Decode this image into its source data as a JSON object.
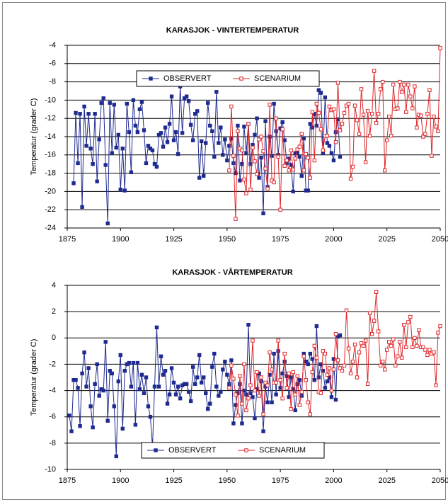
{
  "chart_data": [
    {
      "type": "line",
      "title": "KARASJOK - VINTERTEMPERATUR",
      "ylabel": "Temperatur (grader C)",
      "grid": true,
      "legend": "upper center",
      "xlim": [
        1875,
        2050
      ],
      "xticks": [
        1875,
        1900,
        1925,
        1950,
        1975,
        2000,
        2025,
        2050
      ],
      "ylim": [
        -24,
        -4
      ],
      "yticks": [
        -24,
        -22,
        -20,
        -18,
        -16,
        -14,
        -12,
        -10,
        -8,
        -6,
        -4
      ],
      "series": [
        {
          "name": "OBSERVERT",
          "color": "#1f2b8f",
          "marker": "filled",
          "x": [
            1878,
            1879,
            1880,
            1881,
            1882,
            1883,
            1884,
            1885,
            1886,
            1887,
            1888,
            1889,
            1890,
            1891,
            1892,
            1893,
            1894,
            1895,
            1896,
            1897,
            1898,
            1899,
            1900,
            1901,
            1902,
            1903,
            1904,
            1905,
            1906,
            1907,
            1908,
            1909,
            1910,
            1911,
            1912,
            1913,
            1914,
            1915,
            1916,
            1917,
            1918,
            1919,
            1920,
            1921,
            1922,
            1923,
            1924,
            1925,
            1926,
            1927,
            1928,
            1929,
            1930,
            1931,
            1932,
            1933,
            1934,
            1935,
            1936,
            1937,
            1938,
            1939,
            1940,
            1941,
            1942,
            1943,
            1944,
            1945,
            1946,
            1947,
            1948,
            1949,
            1950,
            1951,
            1952,
            1953,
            1954,
            1955,
            1956,
            1957,
            1958,
            1959,
            1960,
            1961,
            1962,
            1963,
            1964,
            1965,
            1966,
            1967,
            1968,
            1969,
            1970,
            1971,
            1972,
            1973,
            1974,
            1975,
            1976,
            1977,
            1978,
            1979,
            1980,
            1981,
            1982,
            1983,
            1984,
            1985,
            1986,
            1987,
            1988,
            1989,
            1990,
            1991,
            1992,
            1993,
            1994,
            1995,
            1996,
            1997,
            1998,
            1999,
            2000,
            2001,
            2002,
            2003
          ],
          "values": [
            -19.1,
            -11.4,
            -16.9,
            -11.5,
            -21.7,
            -10.7,
            -15.0,
            -11.5,
            -15.3,
            -17.0,
            -11.5,
            -18.9,
            -14.3,
            -10.3,
            -9.8,
            -17.1,
            -23.5,
            -10.3,
            -15.8,
            -10.5,
            -15.2,
            -13.8,
            -19.8,
            -15.3,
            -19.9,
            -10.4,
            -13.5,
            -17.9,
            -10.0,
            -12.8,
            -13.5,
            -11.0,
            -10.2,
            -13.3,
            -16.9,
            -15.0,
            -15.3,
            -15.5,
            -17.0,
            -17.3,
            -13.8,
            -13.6,
            -15.1,
            -13.0,
            -14.6,
            -12.6,
            -9.6,
            -14.4,
            -13.5,
            -15.9,
            -8.5,
            -13.6,
            -9.8,
            -9.6,
            -10.1,
            -12.7,
            -14.4,
            -11.5,
            -11.2,
            -18.5,
            -14.5,
            -18.3,
            -14.7,
            -10.3,
            -12.8,
            -13.4,
            -16.2,
            -9.1,
            -14.7,
            -13.0,
            -16.0,
            -14.3,
            -16.6,
            -15.0,
            -14.2,
            -16.9,
            -18.0,
            -12.8,
            -18.8,
            -17.0,
            -12.9,
            -15.8,
            -12.6,
            -17.0,
            -14.9,
            -13.8,
            -12.0,
            -18.5,
            -16.3,
            -22.4,
            -12.3,
            -19.5,
            -14.0,
            -16.1,
            -10.4,
            -13.4,
            -16.0,
            -13.1,
            -12.4,
            -14.4,
            -16.9,
            -16.4,
            -17.1,
            -20.0,
            -15.8,
            -15.8,
            -16.2,
            -18.3,
            -14.2,
            -19.9,
            -19.9,
            -12.6,
            -13.0,
            -11.5,
            -12.8,
            -8.9,
            -9.2,
            -15.8,
            -9.7,
            -14.7,
            -15.0,
            -15.8,
            -16.6,
            -13.5,
            -12.1,
            -16.2
          ]
        },
        {
          "name": "SCENARIUM",
          "color": "#e0262a",
          "marker": "open",
          "x": [
            1951,
            1952,
            1953,
            1954,
            1955,
            1956,
            1957,
            1958,
            1959,
            1960,
            1961,
            1962,
            1963,
            1964,
            1965,
            1966,
            1967,
            1968,
            1969,
            1970,
            1971,
            1972,
            1973,
            1974,
            1975,
            1976,
            1977,
            1978,
            1979,
            1980,
            1981,
            1982,
            1983,
            1984,
            1985,
            1986,
            1987,
            1988,
            1989,
            1990,
            1991,
            1992,
            1993,
            1994,
            1995,
            1996,
            1997,
            1998,
            1999,
            2000,
            2001,
            2002,
            2003,
            2004,
            2005,
            2006,
            2007,
            2008,
            2009,
            2010,
            2011,
            2012,
            2013,
            2014,
            2015,
            2016,
            2017,
            2018,
            2019,
            2020,
            2021,
            2022,
            2023,
            2024,
            2025,
            2026,
            2027,
            2028,
            2029,
            2030,
            2031,
            2032,
            2033,
            2034,
            2035,
            2036,
            2037,
            2038,
            2039,
            2040,
            2041,
            2042,
            2043,
            2044,
            2045,
            2046,
            2047,
            2048,
            2049,
            2050
          ],
          "values": [
            -17.7,
            -10.7,
            -16.1,
            -23.0,
            -13.4,
            -15.3,
            -15.5,
            -18.7,
            -20.2,
            -12.6,
            -19.8,
            -15.2,
            -16.7,
            -18.1,
            -14.3,
            -14.0,
            -15.6,
            -17.5,
            -19.7,
            -10.5,
            -18.8,
            -19.0,
            -12.0,
            -16.2,
            -22.0,
            -13.2,
            -17.2,
            -16.6,
            -17.7,
            -15.5,
            -17.6,
            -16.4,
            -15.4,
            -15.1,
            -13.7,
            -17.7,
            -15.9,
            -16.3,
            -18.5,
            -11.3,
            -16.6,
            -10.4,
            -11.4,
            -13.2,
            -15.5,
            -13.9,
            -13.9,
            -10.7,
            -11.1,
            -11.0,
            -14.6,
            -8.1,
            -13.3,
            -12.6,
            -11.4,
            -10.6,
            -10.4,
            -18.6,
            -17.3,
            -10.6,
            -12.2,
            -13.7,
            -8.8,
            -11.6,
            -16.8,
            -11.2,
            -13.9,
            -11.5,
            -6.8,
            -12.5,
            -11.5,
            -8.8,
            -8.0,
            -17.7,
            -14.4,
            -11.8,
            -13.9,
            -8.3,
            -11.0,
            -10.9,
            -8.0,
            -9.1,
            -8.3,
            -11.3,
            -8.3,
            -9.6,
            -10.9,
            -8.5,
            -13.0,
            -11.6,
            -11.7,
            -14.0,
            -13.7,
            -11.5,
            -8.9,
            -16.1,
            -11.8,
            -12.9,
            -13.4,
            -4.3
          ]
        }
      ]
    },
    {
      "type": "line",
      "title": "KARASJOK - VÅRTEMPERATUR",
      "ylabel": "Temperatur (grader C)",
      "grid": true,
      "legend": "lower center",
      "xlim": [
        1875,
        2050
      ],
      "xticks": [
        1875,
        1900,
        1925,
        1950,
        1975,
        2000,
        2025,
        2050
      ],
      "ylim": [
        -10,
        4
      ],
      "yticks": [
        -10,
        -8,
        -6,
        -4,
        -2,
        0,
        2,
        4
      ],
      "series": [
        {
          "name": "OBSERVERT",
          "color": "#1f2b8f",
          "marker": "filled",
          "x": [
            1876,
            1877,
            1878,
            1879,
            1880,
            1881,
            1882,
            1883,
            1884,
            1885,
            1886,
            1887,
            1888,
            1889,
            1890,
            1891,
            1892,
            1893,
            1894,
            1895,
            1896,
            1897,
            1898,
            1899,
            1900,
            1901,
            1902,
            1903,
            1904,
            1905,
            1906,
            1907,
            1908,
            1909,
            1910,
            1911,
            1912,
            1913,
            1914,
            1915,
            1916,
            1917,
            1918,
            1919,
            1920,
            1921,
            1922,
            1923,
            1924,
            1925,
            1926,
            1927,
            1928,
            1929,
            1930,
            1931,
            1932,
            1933,
            1934,
            1935,
            1936,
            1937,
            1938,
            1939,
            1940,
            1941,
            1942,
            1943,
            1944,
            1945,
            1946,
            1947,
            1948,
            1949,
            1950,
            1951,
            1952,
            1953,
            1954,
            1955,
            1956,
            1957,
            1958,
            1959,
            1960,
            1961,
            1962,
            1963,
            1964,
            1965,
            1966,
            1967,
            1968,
            1969,
            1970,
            1971,
            1972,
            1973,
            1974,
            1975,
            1976,
            1977,
            1978,
            1979,
            1980,
            1981,
            1982,
            1983,
            1984,
            1985,
            1986,
            1987,
            1988,
            1989,
            1990,
            1991,
            1992,
            1993,
            1994,
            1995,
            1996,
            1997,
            1998,
            1999,
            2000,
            2001,
            2002,
            2003
          ],
          "values": [
            -5.9,
            -7.1,
            -3.2,
            -3.2,
            -3.8,
            -6.7,
            -2.7,
            -1.1,
            -3.7,
            -2.3,
            -5.2,
            -6.8,
            -3.5,
            -2.0,
            -4.4,
            -3.9,
            -4.0,
            -0.3,
            -6.3,
            -2.5,
            -2.7,
            -5.2,
            -9.0,
            -3.3,
            -1.3,
            -6.9,
            -2.5,
            -2.0,
            -1.9,
            -3.7,
            -1.9,
            -6.6,
            -1.9,
            -3.9,
            -2.8,
            -4.2,
            -3.0,
            -5.2,
            -6.0,
            -8.3,
            -3.7,
            0.8,
            -3.7,
            -1.4,
            -2.8,
            -2.5,
            -5.0,
            -4.3,
            -2.3,
            -3.4,
            -4.3,
            -3.7,
            -4.6,
            -3.6,
            -3.5,
            -3.5,
            -4.1,
            -4.8,
            -2.2,
            -3.5,
            -3.0,
            -1.3,
            -3.4,
            -3.0,
            -4.2,
            -5.4,
            -5.0,
            -2.2,
            -1.2,
            -3.7,
            -4.4,
            -4.1,
            -2.4,
            -1.8,
            -2.8,
            -3.5,
            -1.7,
            -6.5,
            -5.1,
            -4.2,
            -3.5,
            -6.5,
            -4.0,
            -4.3,
            1.0,
            -4.2,
            -4.5,
            -6.1,
            -3.9,
            -2.7,
            -3.3,
            -7.1,
            -3.7,
            -4.9,
            -2.8,
            -4.9,
            -1.2,
            -4.3,
            -1.0,
            -3.8,
            -2.7,
            -1.8,
            -2.9,
            -4.5,
            -3.0,
            -3.9,
            -5.5,
            -3.5,
            -3.2,
            -4.4,
            -1.2,
            -1.8,
            -2.0,
            -1.2,
            -1.6,
            -3.2,
            0.9,
            -3.0,
            -2.0,
            -2.5,
            -3.8,
            -3.3,
            -3.0,
            -4.5,
            -1.6,
            -4.7,
            0.1,
            0.2
          ]
        },
        {
          "name": "SCENARIUM",
          "color": "#e0262a",
          "marker": "open",
          "x": [
            1951,
            1952,
            1953,
            1954,
            1955,
            1956,
            1957,
            1958,
            1959,
            1960,
            1961,
            1962,
            1963,
            1964,
            1965,
            1966,
            1967,
            1968,
            1969,
            1970,
            1971,
            1972,
            1973,
            1974,
            1975,
            1976,
            1977,
            1978,
            1979,
            1980,
            1981,
            1982,
            1983,
            1984,
            1985,
            1986,
            1987,
            1988,
            1989,
            1990,
            1991,
            1992,
            1993,
            1994,
            1995,
            1996,
            1997,
            1998,
            1999,
            2000,
            2001,
            2002,
            2003,
            2004,
            2005,
            2006,
            2007,
            2008,
            2009,
            2010,
            2011,
            2012,
            2013,
            2014,
            2015,
            2016,
            2017,
            2018,
            2019,
            2020,
            2021,
            2022,
            2023,
            2024,
            2025,
            2026,
            2027,
            2028,
            2029,
            2030,
            2031,
            2032,
            2033,
            2034,
            2035,
            2036,
            2037,
            2038,
            2039,
            2040,
            2041,
            2042,
            2043,
            2044,
            2045,
            2046,
            2047,
            2048,
            2049,
            2050
          ],
          "values": [
            -3.8,
            -2.1,
            -3.1,
            -4.3,
            -5.9,
            -2.9,
            -5.0,
            -2.0,
            -5.5,
            -4.6,
            -3.6,
            -0.2,
            -4.0,
            -2.6,
            -4.4,
            -3.0,
            -5.8,
            -3.4,
            -3.6,
            -1.1,
            -2.4,
            -3.4,
            -3.4,
            -0.2,
            -3.2,
            -4.6,
            -1.2,
            -3.8,
            -2.7,
            -5.4,
            -2.6,
            -4.3,
            -2.9,
            -5.1,
            -4.1,
            -1.4,
            -3.2,
            -4.9,
            -5.8,
            -2.6,
            -0.6,
            -1.5,
            -4.1,
            -4.2,
            -1.0,
            -1.2,
            -2.8,
            -2.3,
            -4.0,
            -2.4,
            0.3,
            -1.7,
            -2.3,
            -2.5,
            -2.1,
            2.1,
            -0.8,
            -2.7,
            -1.8,
            -0.5,
            -3.0,
            -1.1,
            -0.4,
            -0.6,
            -0.2,
            -3.5,
            1.9,
            0.3,
            1.3,
            3.5,
            0.5,
            -2.1,
            -1.8,
            -2.4,
            -0.9,
            -0.3,
            -0.6,
            -0.1,
            -2.1,
            -1.4,
            -0.3,
            -1.5,
            1.0,
            -0.7,
            1.2,
            1.6,
            -0.7,
            0.0,
            -0.6,
            0.6,
            -0.7,
            -0.7,
            -0.9,
            -1.3,
            -0.9,
            -1.2,
            -1.1,
            -3.6,
            0.4,
            0.9
          ]
        }
      ]
    }
  ]
}
